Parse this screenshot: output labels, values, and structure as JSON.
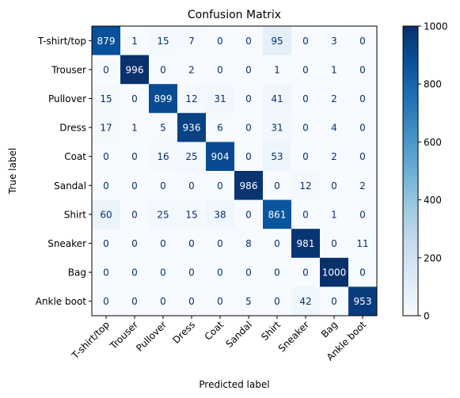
{
  "chart_data": {
    "type": "heatmap",
    "title": "Confusion Matrix",
    "xlabel": "Predicted label",
    "ylabel": "True label",
    "labels": [
      "T-shirt/top",
      "Trouser",
      "Pullover",
      "Dress",
      "Coat",
      "Sandal",
      "Shirt",
      "Sneaker",
      "Bag",
      "Ankle boot"
    ],
    "matrix": [
      [
        879,
        1,
        15,
        7,
        0,
        0,
        95,
        0,
        3,
        0
      ],
      [
        0,
        996,
        0,
        2,
        0,
        0,
        1,
        0,
        1,
        0
      ],
      [
        15,
        0,
        899,
        12,
        31,
        0,
        41,
        0,
        2,
        0
      ],
      [
        17,
        1,
        5,
        936,
        6,
        0,
        31,
        0,
        4,
        0
      ],
      [
        0,
        0,
        16,
        25,
        904,
        0,
        53,
        0,
        2,
        0
      ],
      [
        0,
        0,
        0,
        0,
        0,
        986,
        0,
        12,
        0,
        2
      ],
      [
        60,
        0,
        25,
        15,
        38,
        0,
        861,
        0,
        1,
        0
      ],
      [
        0,
        0,
        0,
        0,
        0,
        8,
        0,
        981,
        0,
        11
      ],
      [
        0,
        0,
        0,
        0,
        0,
        0,
        0,
        0,
        1000,
        0
      ],
      [
        0,
        0,
        0,
        0,
        0,
        5,
        0,
        42,
        0,
        953
      ]
    ],
    "colorbar": {
      "colormap": "Blues",
      "range": [
        0,
        1000
      ],
      "ticks": [
        0,
        200,
        400,
        600,
        800,
        1000
      ]
    }
  }
}
